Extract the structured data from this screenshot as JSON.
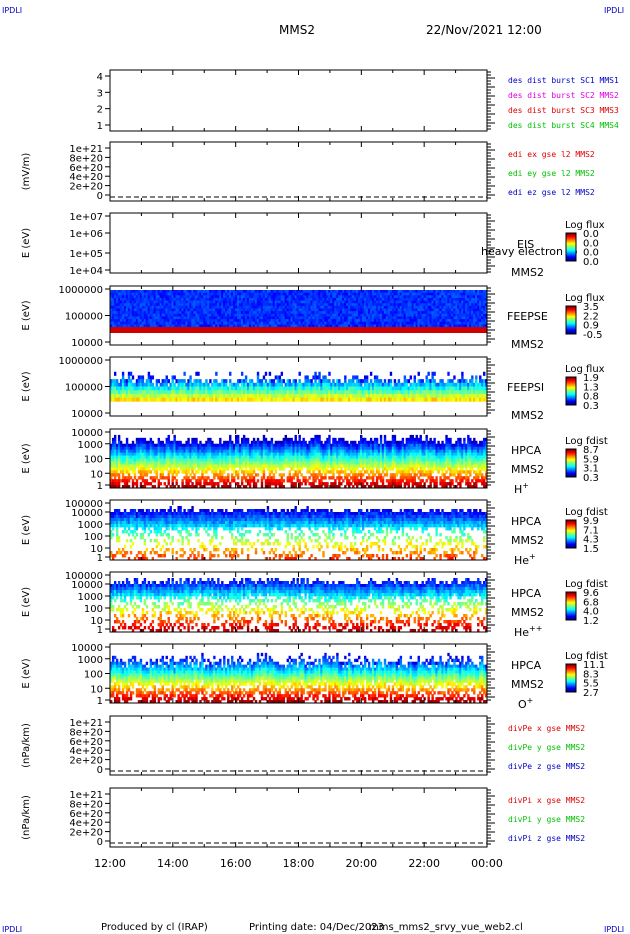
{
  "header": {
    "corner_label": "IPDLI",
    "spacecraft": "MMS2",
    "datetime": "22/Nov/2021 12:00"
  },
  "footer": {
    "produced_by": "Produced by cl (IRAP)",
    "printing_date": "Printing date: 04/Dec/2023",
    "filename": "mms_mms2_srvy_vue_web2.cl"
  },
  "colors": {
    "red": "#e00000",
    "green": "#00c000",
    "blue": "#0000c8",
    "magenta": "#e000e0"
  },
  "chart_data": [
    {
      "id": "p1",
      "type": "line",
      "yticks": [
        "4",
        "3",
        "2",
        "1"
      ],
      "legend": [
        {
          "text": "des dist burst SC1 MMS1",
          "color": "#0000c8"
        },
        {
          "text": "des dist burst SC2 MMS2",
          "color": "#e000e0"
        },
        {
          "text": "des dist burst SC3 MMS3",
          "color": "#e00000"
        },
        {
          "text": "des dist burst SC4 MMS4",
          "color": "#00c000"
        }
      ]
    },
    {
      "id": "p2",
      "type": "line",
      "ylabel": "(mV/m)",
      "yticks": [
        "1e+21",
        "8e+20",
        "6e+20",
        "4e+20",
        "2e+20",
        "0"
      ],
      "legend": [
        {
          "text": "edi ex gse l2 MMS2",
          "color": "#e00000"
        },
        {
          "text": "edi ey gse l2 MMS2",
          "color": "#00c000"
        },
        {
          "text": "edi ez gse l2 MMS2",
          "color": "#0000c8"
        }
      ]
    },
    {
      "id": "p3",
      "type": "heatmap",
      "ylabel": "E (eV)",
      "yticks": [
        "1e+07",
        "1e+06",
        "1e+05",
        "1e+04"
      ],
      "instrument": "EIS",
      "sc": "MMS2",
      "overlay": "heavy electron to",
      "cbar_title": "Log flux",
      "cbar_ticks": [
        "0.0",
        "0.0",
        "0.0",
        "0.0"
      ],
      "fill": "none"
    },
    {
      "id": "p4",
      "type": "heatmap",
      "ylabel": "E (eV)",
      "yticks": [
        "1000000",
        "100000",
        "10000"
      ],
      "instrument": "FEEPSE",
      "sc": "MMS2",
      "cbar_title": "Log flux",
      "cbar_ticks": [
        "3.5",
        "2.2",
        "0.9",
        "-0.5"
      ],
      "fill": "feepse"
    },
    {
      "id": "p5",
      "type": "heatmap",
      "ylabel": "E (eV)",
      "yticks": [
        "1000000",
        "100000",
        "10000"
      ],
      "instrument": "FEEPSI",
      "sc": "MMS2",
      "cbar_title": "Log flux",
      "cbar_ticks": [
        "1.9",
        "1.3",
        "0.8",
        "0.3"
      ],
      "fill": "feepsi"
    },
    {
      "id": "p6",
      "type": "heatmap",
      "ylabel": "E (eV)",
      "yticks": [
        "10000",
        "1000",
        "100",
        "10",
        "1"
      ],
      "instrument": "HPCA",
      "sc": "MMS2",
      "species": "H",
      "charge": "+",
      "cbar_title": "Log fdist",
      "cbar_ticks": [
        "8.7",
        "5.9",
        "3.1",
        "0.3"
      ],
      "fill": "hplus"
    },
    {
      "id": "p7",
      "type": "heatmap",
      "ylabel": "E (eV)",
      "yticks": [
        "100000",
        "10000",
        "1000",
        "100",
        "10",
        "1"
      ],
      "instrument": "HPCA",
      "sc": "MMS2",
      "species": "He",
      "charge": "+",
      "cbar_title": "Log fdist",
      "cbar_ticks": [
        "9.9",
        "7.1",
        "4.3",
        "1.5"
      ],
      "fill": "heplus"
    },
    {
      "id": "p8",
      "type": "heatmap",
      "ylabel": "E (eV)",
      "yticks": [
        "100000",
        "10000",
        "1000",
        "100",
        "10",
        "1"
      ],
      "instrument": "HPCA",
      "sc": "MMS2",
      "species": "He",
      "charge": "++",
      "cbar_title": "Log fdist",
      "cbar_ticks": [
        "9.6",
        "6.8",
        "4.0",
        "1.2"
      ],
      "fill": "heplusplus"
    },
    {
      "id": "p9",
      "type": "heatmap",
      "ylabel": "E (eV)",
      "yticks": [
        "10000",
        "1000",
        "100",
        "10",
        "1"
      ],
      "instrument": "HPCA",
      "sc": "MMS2",
      "species": "O",
      "charge": "+",
      "cbar_title": "Log fdist",
      "cbar_ticks": [
        "11.1",
        "8.3",
        "5.5",
        "2.7"
      ],
      "fill": "oplus"
    },
    {
      "id": "p10",
      "type": "line",
      "ylabel": "(nPa/km)",
      "yticks": [
        "1e+21",
        "8e+20",
        "6e+20",
        "4e+20",
        "2e+20",
        "0"
      ],
      "legend": [
        {
          "text": "divPe x gse MMS2",
          "color": "#e00000"
        },
        {
          "text": "divPe y gse MMS2",
          "color": "#00c000"
        },
        {
          "text": "divPe z gse MMS2",
          "color": "#0000c8"
        }
      ]
    },
    {
      "id": "p11",
      "type": "line",
      "ylabel": "(nPa/km)",
      "yticks": [
        "1e+21",
        "8e+20",
        "6e+20",
        "4e+20",
        "2e+20",
        "0"
      ],
      "legend": [
        {
          "text": "divPi x gse MMS2",
          "color": "#e00000"
        },
        {
          "text": "divPi y gse MMS2",
          "color": "#00c000"
        },
        {
          "text": "divPi z gse MMS2",
          "color": "#0000c8"
        }
      ]
    }
  ],
  "x_axis": {
    "ticks": [
      "12:00",
      "14:00",
      "16:00",
      "18:00",
      "20:00",
      "22:00",
      "00:00"
    ]
  }
}
